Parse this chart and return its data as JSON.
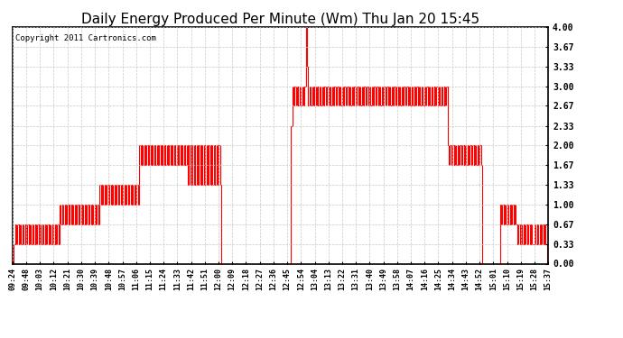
{
  "title": "Daily Energy Produced Per Minute (Wm) Thu Jan 20 15:45",
  "copyright": "Copyright 2011 Cartronics.com",
  "ylim": [
    0.0,
    4.0
  ],
  "yticks": [
    0.0,
    0.33,
    0.67,
    1.0,
    1.33,
    1.67,
    2.0,
    2.33,
    2.67,
    3.0,
    3.33,
    3.67,
    4.0
  ],
  "ytick_labels": [
    "0.00",
    "0.33",
    "0.67",
    "1.00",
    "1.33",
    "1.67",
    "2.00",
    "2.33",
    "2.67",
    "3.00",
    "3.33",
    "3.67",
    "4.00"
  ],
  "line_color": "#ff0000",
  "bg_color": "#ffffff",
  "grid_color": "#c8c8c8",
  "title_fontsize": 11,
  "copyright_fontsize": 6.5,
  "xtick_labels": [
    "09:24",
    "09:48",
    "10:03",
    "10:12",
    "10:21",
    "10:30",
    "10:39",
    "10:48",
    "10:57",
    "11:06",
    "11:15",
    "11:24",
    "11:33",
    "11:42",
    "11:51",
    "12:00",
    "12:09",
    "12:18",
    "12:27",
    "12:36",
    "12:45",
    "12:54",
    "13:04",
    "13:13",
    "13:22",
    "13:31",
    "13:40",
    "13:49",
    "13:58",
    "14:07",
    "14:16",
    "14:25",
    "14:34",
    "14:43",
    "14:52",
    "15:01",
    "15:10",
    "15:19",
    "15:28",
    "15:37"
  ],
  "series": [
    0.0,
    0.33,
    0.67,
    0.33,
    0.67,
    0.33,
    0.67,
    0.33,
    0.67,
    0.33,
    0.67,
    0.33,
    0.67,
    0.33,
    0.67,
    0.33,
    0.67,
    0.33,
    0.67,
    0.33,
    0.67,
    0.33,
    0.67,
    0.33,
    0.67,
    0.33,
    0.67,
    0.33,
    0.67,
    0.33,
    0.67,
    0.33,
    0.67,
    0.33,
    0.67,
    0.33,
    0.67,
    0.33,
    1.0,
    0.67,
    1.0,
    0.67,
    1.0,
    0.67,
    1.0,
    0.67,
    1.0,
    0.67,
    1.0,
    0.67,
    1.0,
    0.67,
    1.0,
    0.67,
    1.0,
    0.67,
    1.0,
    0.67,
    1.0,
    0.67,
    1.0,
    0.67,
    1.0,
    0.67,
    1.0,
    0.67,
    1.0,
    0.67,
    1.0,
    0.67,
    1.33,
    1.0,
    1.33,
    1.0,
    1.33,
    1.0,
    1.33,
    1.0,
    1.33,
    1.0,
    1.33,
    1.0,
    1.33,
    1.0,
    1.33,
    1.0,
    1.33,
    1.0,
    1.33,
    1.0,
    1.33,
    1.0,
    1.33,
    1.0,
    1.33,
    1.0,
    1.33,
    1.0,
    1.33,
    1.0,
    1.33,
    1.0,
    2.0,
    1.67,
    2.0,
    1.67,
    2.0,
    1.67,
    2.0,
    1.67,
    2.0,
    1.67,
    2.0,
    1.67,
    2.0,
    1.67,
    2.0,
    1.67,
    2.0,
    1.67,
    2.0,
    1.67,
    2.0,
    1.67,
    2.0,
    1.67,
    2.0,
    1.67,
    2.0,
    1.67,
    2.0,
    1.67,
    2.0,
    1.67,
    2.0,
    1.67,
    2.0,
    1.67,
    2.0,
    1.67,
    2.0,
    1.33,
    2.0,
    1.33,
    2.0,
    1.33,
    2.0,
    1.33,
    2.0,
    1.33,
    2.0,
    1.33,
    2.0,
    1.33,
    2.0,
    1.33,
    2.0,
    1.33,
    2.0,
    1.33,
    2.0,
    1.33,
    2.0,
    1.33,
    2.0,
    1.33,
    2.0,
    1.33,
    0.0,
    0.0,
    0.0,
    0.0,
    0.0,
    0.0,
    0.0,
    0.0,
    0.0,
    0.0,
    0.0,
    0.0,
    0.0,
    0.0,
    0.0,
    0.0,
    0.0,
    0.0,
    0.0,
    0.0,
    0.0,
    0.0,
    0.0,
    0.0,
    0.0,
    0.0,
    0.0,
    0.0,
    0.0,
    0.0,
    0.0,
    0.0,
    0.0,
    0.0,
    0.0,
    0.0,
    0.0,
    0.0,
    0.0,
    0.0,
    0.0,
    0.0,
    0.0,
    0.0,
    0.0,
    0.0,
    0.0,
    0.0,
    0.0,
    0.0,
    0.0,
    0.0,
    0.0,
    0.0,
    0.0,
    0.0,
    2.33,
    3.0,
    2.67,
    3.0,
    2.67,
    3.0,
    2.67,
    3.0,
    2.67,
    3.0,
    2.67,
    3.0,
    4.0,
    3.33,
    2.67,
    3.0,
    2.67,
    3.0,
    2.67,
    3.0,
    2.67,
    3.0,
    2.67,
    3.0,
    2.67,
    3.0,
    2.67,
    3.0,
    2.67,
    3.0,
    2.67,
    3.0,
    2.67,
    3.0,
    2.67,
    3.0,
    2.67,
    3.0,
    2.67,
    3.0,
    2.67,
    3.0,
    2.67,
    3.0,
    2.67,
    3.0,
    2.67,
    3.0,
    2.67,
    3.0,
    2.67,
    3.0,
    2.67,
    3.0,
    2.67,
    3.0,
    2.67,
    3.0,
    2.67,
    3.0,
    2.67,
    3.0,
    2.67,
    3.0,
    2.67,
    3.0,
    2.67,
    3.0,
    2.67,
    3.0,
    2.67,
    3.0,
    2.67,
    3.0,
    2.67,
    3.0,
    2.67,
    3.0,
    2.67,
    3.0,
    2.67,
    3.0,
    2.67,
    3.0,
    2.67,
    3.0,
    2.67,
    3.0,
    2.67,
    3.0,
    2.67,
    3.0,
    2.67,
    3.0,
    2.67,
    3.0,
    2.67,
    3.0,
    2.67,
    3.0,
    2.67,
    3.0,
    2.67,
    3.0,
    2.67,
    3.0,
    2.67,
    3.0,
    2.67,
    3.0,
    2.67,
    3.0,
    2.67,
    3.0,
    2.67,
    3.0,
    2.67,
    3.0,
    2.67,
    3.0,
    2.67,
    3.0,
    2.67,
    3.0,
    2.67,
    3.0,
    2.0,
    1.67,
    2.0,
    1.67,
    2.0,
    1.67,
    2.0,
    1.67,
    2.0,
    1.67,
    2.0,
    1.67,
    2.0,
    1.67,
    2.0,
    1.67,
    2.0,
    1.67,
    2.0,
    1.67,
    2.0,
    1.67,
    2.0,
    1.67,
    2.0,
    1.67,
    2.0,
    1.67,
    0.0,
    0.0,
    0.0,
    0.0,
    0.0,
    0.0,
    0.0,
    0.0,
    0.0,
    0.0,
    0.0,
    0.0,
    0.0,
    0.0,
    1.0,
    0.67,
    1.0,
    0.67,
    1.0,
    0.67,
    1.0,
    0.67,
    1.0,
    0.67,
    1.0,
    0.67,
    1.0,
    0.67,
    0.33,
    0.67,
    0.33,
    0.67,
    0.33,
    0.67,
    0.33,
    0.67,
    0.33,
    0.67,
    0.33,
    0.67,
    0.33,
    0.33,
    0.67,
    0.33,
    0.67,
    0.33,
    0.67,
    0.33,
    0.67,
    0.33,
    0.67,
    0.33,
    0.0,
    0.0
  ]
}
